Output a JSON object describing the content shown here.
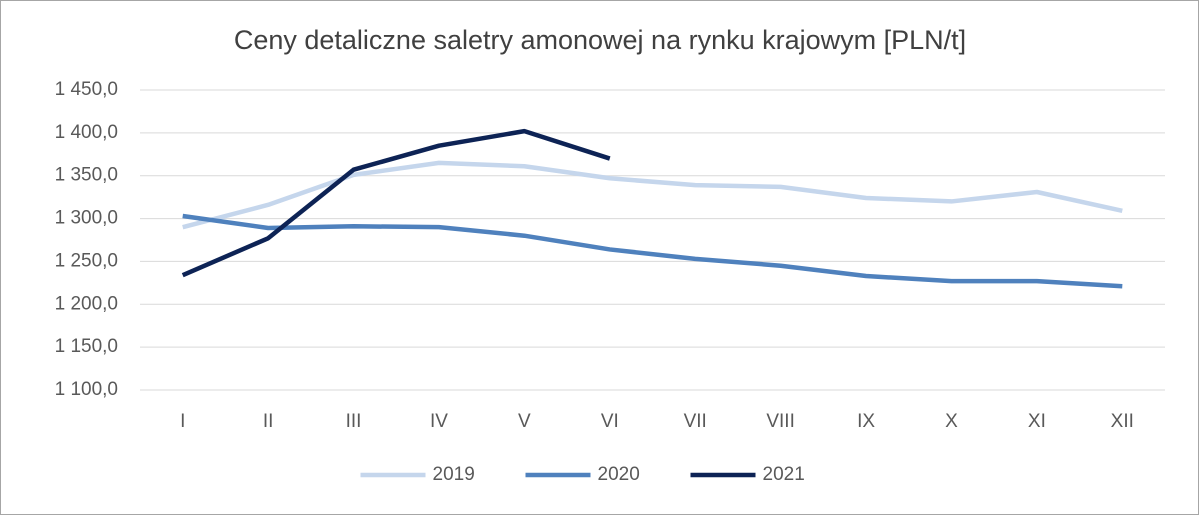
{
  "chart_data": {
    "type": "line",
    "title": "Ceny detaliczne saletry amonowej na rynku krajowym [PLN/t]",
    "categories": [
      "I",
      "II",
      "III",
      "IV",
      "V",
      "VI",
      "VII",
      "VIII",
      "IX",
      "X",
      "XI",
      "XII"
    ],
    "series": [
      {
        "name": "2019",
        "color": "#c5d6ec",
        "values": [
          1290,
          1316,
          1351,
          1365,
          1361,
          1347,
          1339,
          1337,
          1324,
          1320,
          1331,
          1309
        ]
      },
      {
        "name": "2020",
        "color": "#4f81bd",
        "values": [
          1303,
          1289,
          1291,
          1290,
          1280,
          1264,
          1253,
          1245,
          1233,
          1227,
          1227,
          1221
        ]
      },
      {
        "name": "2021",
        "color": "#0d2355",
        "values": [
          1234,
          1277,
          1357,
          1385,
          1402,
          1370,
          null,
          null,
          null,
          null,
          null,
          null
        ]
      }
    ],
    "ylim": [
      1100,
      1450
    ],
    "yticks": [
      {
        "value": 1100,
        "label": "1 100,0"
      },
      {
        "value": 1150,
        "label": "1 150,0"
      },
      {
        "value": 1200,
        "label": "1 200,0"
      },
      {
        "value": 1250,
        "label": "1 250,0"
      },
      {
        "value": 1300,
        "label": "1 300,0"
      },
      {
        "value": 1350,
        "label": "1 350,0"
      },
      {
        "value": 1400,
        "label": "1 400,0"
      },
      {
        "value": 1450,
        "label": "1 450,0"
      }
    ],
    "grid": true,
    "legend": "bottom"
  }
}
